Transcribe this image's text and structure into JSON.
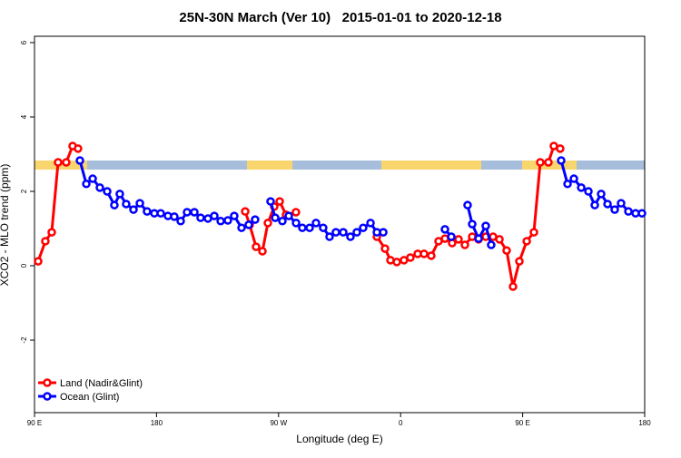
{
  "chart_data": {
    "type": "line",
    "title": "25N-30N March (Ver 10)   2015-01-01 to 2020-12-18",
    "x_label": "Longitude (deg E)",
    "y_label": "XCO2 - MLO trend (ppm)",
    "xlim": [
      90,
      540
    ],
    "ylim": [
      -3.95,
      6.17
    ],
    "xticks": [
      {
        "value": 90,
        "label": "90 E"
      },
      180,
      {
        "value": 270,
        "label": "90 W"
      },
      {
        "value": 360,
        "label": "0"
      },
      {
        "value": 450,
        "label": "90 E"
      },
      {
        "value": 540,
        "label": "180"
      }
    ],
    "yticks": [
      -2,
      0,
      2,
      4,
      6
    ],
    "legend": "bottom-left",
    "series": [
      {
        "name": "Land (Nadir&Glint)",
        "color": "#ff0000",
        "x": [
          92.7,
          98,
          102.7,
          107.4,
          113.4,
          118.1,
          122.1,
          null,
          245.4,
          248.7,
          253.4,
          258.1,
          262.1,
          266.8,
          270.8,
          275.5,
          282.8,
          null,
          342.5,
          348.5,
          352.5,
          357.2,
          362.5,
          367.2,
          372.6,
          377.3,
          382.6,
          388,
          392.7,
          398,
          402.7,
          407.4,
          412.8,
          417.5,
          422.8,
          428.2,
          432.9,
          438.2,
          442.9,
          447.6,
          453,
          458.3,
          463,
          469,
          473,
          477.7
        ],
        "values": [
          0.12,
          0.66,
          0.9,
          2.78,
          2.78,
          3.22,
          3.15,
          null,
          1.46,
          1.1,
          0.51,
          0.39,
          1.15,
          1.59,
          1.73,
          1.37,
          1.44,
          null,
          0.78,
          0.46,
          0.15,
          0.1,
          0.15,
          0.22,
          0.32,
          0.32,
          0.27,
          0.66,
          0.73,
          0.61,
          0.71,
          0.56,
          0.78,
          0.71,
          0.78,
          0.78,
          0.71,
          0.41,
          -0.56,
          0.12,
          0.66,
          0.9,
          2.78,
          2.78,
          3.22,
          3.15
        ]
      },
      {
        "name": "Ocean (Glint)",
        "color": "#0000ff",
        "x": [
          123.5,
          128.2,
          132.9,
          138.2,
          143.6,
          148.9,
          152.9,
          157.6,
          163,
          167.7,
          173,
          178.4,
          183.1,
          188.4,
          193.1,
          197.8,
          202.5,
          207.9,
          212.5,
          217.9,
          222.6,
          227.3,
          232.6,
          237.3,
          242.7,
          248,
          252.7,
          null,
          264.1,
          267.5,
          272.8,
          277.5,
          282.9,
          287.5,
          292.9,
          297.6,
          302.9,
          307.6,
          312.3,
          317.7,
          323,
          327.7,
          332.4,
          337.8,
          342.5,
          347.2,
          null,
          392.7,
          397.4,
          null,
          409.4,
          412.8,
          417.5,
          422.8,
          426.8,
          null,
          478.4,
          483.1,
          487.8,
          493.2,
          498.5,
          503.2,
          507.9,
          512.6,
          517.9,
          522.6,
          528,
          533.3,
          538
        ],
        "values": [
          2.83,
          2.2,
          2.34,
          2.1,
          2.0,
          1.63,
          1.93,
          1.66,
          1.51,
          1.68,
          1.46,
          1.41,
          1.41,
          1.34,
          1.32,
          1.2,
          1.44,
          1.44,
          1.29,
          1.27,
          1.34,
          1.2,
          1.22,
          1.34,
          1.02,
          1.1,
          1.24,
          null,
          1.73,
          1.29,
          1.2,
          1.34,
          1.15,
          1.02,
          1.02,
          1.15,
          1.02,
          0.78,
          0.9,
          0.9,
          0.78,
          0.9,
          1.02,
          1.15,
          0.9,
          0.9,
          null,
          0.98,
          0.78,
          null,
          1.63,
          1.12,
          0.73,
          1.07,
          0.56,
          null,
          2.83,
          2.2,
          2.34,
          2.1,
          2.0,
          1.63,
          1.93,
          1.66,
          1.51,
          1.68,
          1.46,
          1.41,
          1.41
        ]
      }
    ]
  }
}
